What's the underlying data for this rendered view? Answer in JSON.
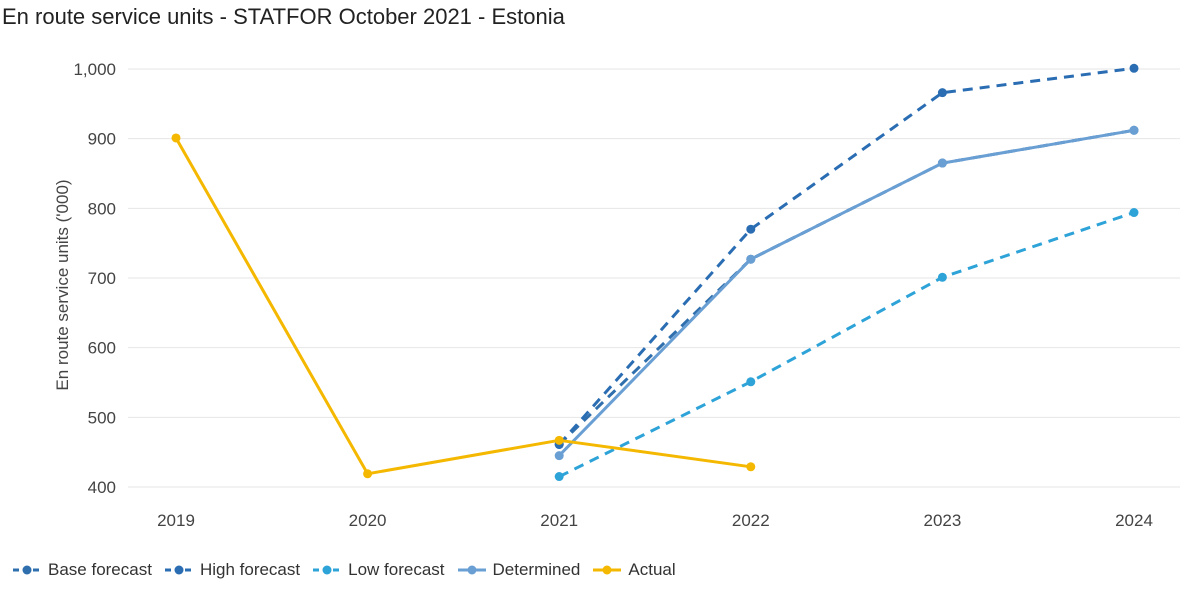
{
  "chart_data": {
    "type": "line",
    "title": "En route service units - STATFOR October 2021 - Estonia",
    "xlabel": "",
    "ylabel": "En route service units ('000)",
    "x": [
      "2019",
      "2020",
      "2021",
      "2022",
      "2023",
      "2024"
    ],
    "ylim": [
      400,
      1000
    ],
    "yticks": [
      400,
      500,
      600,
      700,
      800,
      900,
      1000
    ],
    "ytick_labels": [
      "400",
      "500",
      "600",
      "700",
      "800",
      "900",
      "1,000"
    ],
    "grid": true,
    "legend_position": "bottom-left",
    "series": [
      {
        "name": "Base forecast",
        "style": "dashed",
        "color": "#2f6fad",
        "values": [
          null,
          null,
          461,
          727,
          865,
          912
        ]
      },
      {
        "name": "High forecast",
        "style": "dashed",
        "color": "#2a6db3",
        "values": [
          null,
          null,
          461,
          770,
          966,
          1001
        ]
      },
      {
        "name": "Low forecast",
        "style": "dashed",
        "color": "#2ea3d8",
        "values": [
          null,
          null,
          415,
          551,
          701,
          794
        ]
      },
      {
        "name": "Determined",
        "style": "solid",
        "color": "#6a9fd4",
        "values": [
          null,
          null,
          445,
          727,
          865,
          912
        ]
      },
      {
        "name": "Actual",
        "style": "solid",
        "color": "#f5b800",
        "values": [
          901,
          419,
          467,
          429,
          null,
          null
        ]
      }
    ]
  }
}
